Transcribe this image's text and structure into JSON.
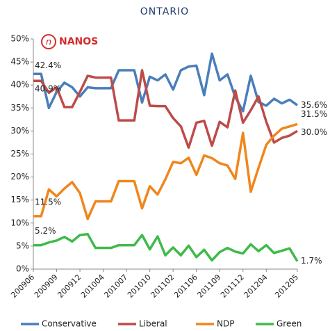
{
  "chart_data": {
    "type": "line",
    "title": "ONTARIO",
    "logo": "NANOS",
    "categories": [
      "200906",
      null,
      null,
      "200909",
      null,
      null,
      "200912",
      null,
      null,
      "201004",
      null,
      null,
      "201007",
      null,
      null,
      "201010",
      null,
      null,
      "201102",
      null,
      null,
      "201106",
      null,
      null,
      "201109",
      null,
      null,
      "201112",
      null,
      null,
      "201204",
      null,
      null,
      null,
      "201205"
    ],
    "series": [
      {
        "name": "Conservative",
        "color": "#4a7ebb",
        "values": [
          42.4,
          42.4,
          35.0,
          38.5,
          40.5,
          39.5,
          37.5,
          39.5,
          39.3,
          39.3,
          39.3,
          43.2,
          43.2,
          43.2,
          36.2,
          41.8,
          41.0,
          42.3,
          39.0,
          43.2,
          44.0,
          44.2,
          37.8,
          46.8,
          41.0,
          42.3,
          37.4,
          34.3,
          42.0,
          36.3,
          35.5,
          37.0,
          36.0,
          36.8,
          35.6
        ],
        "value_labels": [
          "42.4%",
          null,
          null,
          null,
          null,
          null,
          null,
          null,
          null,
          null,
          null,
          null,
          null,
          null,
          null,
          null,
          null,
          null,
          null,
          null,
          null,
          null,
          null,
          null,
          null,
          null,
          null,
          null,
          null,
          null,
          null,
          null,
          null,
          null,
          "35.6%"
        ]
      },
      {
        "name": "Liberal",
        "color": "#be4b48",
        "values": [
          40.9,
          40.9,
          38.3,
          39.5,
          35.2,
          35.2,
          38.5,
          42.0,
          41.6,
          41.6,
          41.6,
          32.3,
          32.3,
          32.3,
          43.2,
          35.5,
          35.4,
          35.4,
          32.8,
          31.0,
          26.4,
          31.8,
          32.2,
          26.8,
          32.0,
          30.8,
          38.8,
          31.8,
          34.5,
          37.5,
          32.0,
          27.5,
          28.5,
          29.0,
          30.0
        ],
        "value_labels": [
          "40.9%",
          null,
          null,
          null,
          null,
          null,
          null,
          null,
          null,
          null,
          null,
          null,
          null,
          null,
          null,
          null,
          null,
          null,
          null,
          null,
          null,
          null,
          null,
          null,
          null,
          null,
          null,
          null,
          null,
          null,
          null,
          null,
          null,
          null,
          "30.0%"
        ]
      },
      {
        "name": "NDP",
        "color": "#f0861c",
        "values": [
          11.5,
          11.5,
          17.3,
          15.8,
          17.5,
          18.9,
          16.5,
          10.9,
          14.7,
          14.7,
          14.7,
          19.1,
          19.1,
          19.1,
          13.2,
          18.0,
          16.2,
          19.5,
          23.3,
          23.0,
          24.2,
          20.5,
          24.7,
          24.1,
          23.0,
          22.5,
          19.6,
          29.6,
          16.8,
          22.0,
          27.0,
          29.0,
          30.5,
          31.0,
          31.5
        ],
        "value_labels": [
          "11.5%",
          null,
          null,
          null,
          null,
          null,
          null,
          null,
          null,
          null,
          null,
          null,
          null,
          null,
          null,
          null,
          null,
          null,
          null,
          null,
          null,
          null,
          null,
          null,
          null,
          null,
          null,
          null,
          null,
          null,
          null,
          null,
          null,
          null,
          "31.5%"
        ]
      },
      {
        "name": "Green",
        "color": "#3fba4a",
        "values": [
          5.2,
          5.2,
          5.8,
          6.2,
          7.0,
          6.0,
          7.4,
          7.6,
          4.6,
          4.6,
          4.6,
          5.2,
          5.2,
          5.2,
          7.4,
          4.3,
          7.1,
          3.0,
          4.7,
          3.0,
          5.1,
          2.6,
          4.2,
          1.9,
          3.7,
          4.6,
          3.8,
          3.4,
          5.4,
          3.9,
          5.2,
          3.5,
          4.0,
          4.5,
          1.7
        ],
        "value_labels": [
          "5.2%",
          null,
          null,
          null,
          null,
          null,
          null,
          null,
          null,
          null,
          null,
          null,
          null,
          null,
          null,
          null,
          null,
          null,
          null,
          null,
          null,
          null,
          null,
          null,
          null,
          null,
          null,
          null,
          null,
          null,
          null,
          null,
          null,
          null,
          "1.7%"
        ]
      }
    ],
    "ylim": [
      0,
      50
    ],
    "yticks": [
      {
        "value": 0,
        "label": "0%"
      },
      {
        "value": 5,
        "label": "5%"
      },
      {
        "value": 10,
        "label": "10%"
      },
      {
        "value": 15,
        "label": "15%"
      },
      {
        "value": 20,
        "label": "20%"
      },
      {
        "value": 25,
        "label": "25%"
      },
      {
        "value": 30,
        "label": "30%"
      },
      {
        "value": 35,
        "label": "35%"
      },
      {
        "value": 40,
        "label": "40%"
      },
      {
        "value": 45,
        "label": "45%"
      },
      {
        "value": 50,
        "label": "50%"
      }
    ],
    "legend": "bottom"
  }
}
